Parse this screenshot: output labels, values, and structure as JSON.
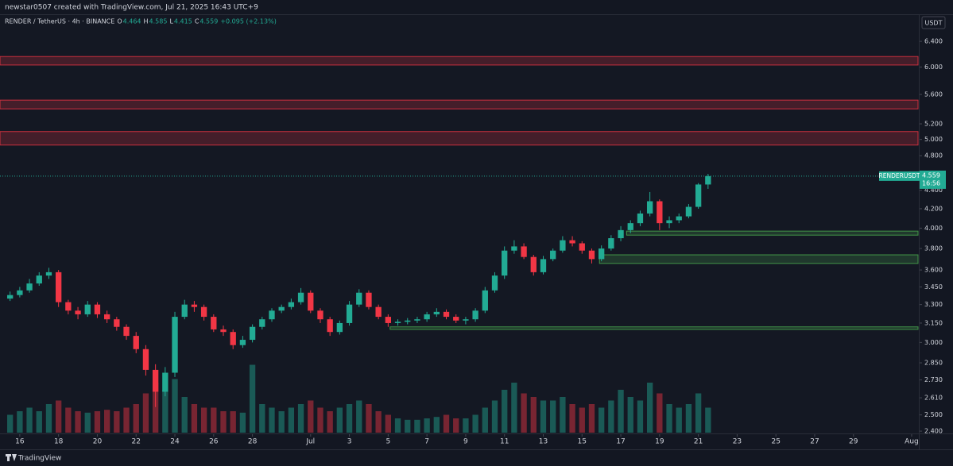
{
  "header": {
    "credit": "newstar0507 created with TradingView.com, Jul 21, 2025 16:43 UTC+9"
  },
  "footer": {
    "brand": "TradingView"
  },
  "chart_data": {
    "type": "candlestick",
    "symbol": "RENDER / TetherUS · 4h · BINANCE",
    "legend_keys": [
      "O",
      "H",
      "L",
      "C"
    ],
    "change": "+0.095 (+2.13%)",
    "currency": "USDT",
    "last_symbol": "RENDERUSDT",
    "countdown": "16:56",
    "up_color": "#22ab94",
    "down_color": "#f23645",
    "log_scale": true,
    "xlim": [
      -1.02,
      46.33
    ],
    "ylim": [
      2.386,
      6.851
    ],
    "volume_lim": [
      0,
      100
    ],
    "xticks": [
      {
        "value": 0,
        "label": "16"
      },
      {
        "value": 2,
        "label": "18"
      },
      {
        "value": 4,
        "label": "20"
      },
      {
        "value": 6,
        "label": "22"
      },
      {
        "value": 8,
        "label": "24"
      },
      {
        "value": 10,
        "label": "26"
      },
      {
        "value": 12,
        "label": "28"
      },
      {
        "value": 15,
        "label": "Jul"
      },
      {
        "value": 17,
        "label": "3"
      },
      {
        "value": 19,
        "label": "5"
      },
      {
        "value": 21,
        "label": "7"
      },
      {
        "value": 23,
        "label": "9"
      },
      {
        "value": 25,
        "label": "11"
      },
      {
        "value": 27,
        "label": "13"
      },
      {
        "value": 29,
        "label": "15"
      },
      {
        "value": 31,
        "label": "17"
      },
      {
        "value": 33,
        "label": "19"
      },
      {
        "value": 35,
        "label": "21"
      },
      {
        "value": 37,
        "label": "23"
      },
      {
        "value": 39,
        "label": "25"
      },
      {
        "value": 41,
        "label": "27"
      },
      {
        "value": 43,
        "label": "29"
      },
      {
        "value": 46,
        "label": "Aug"
      }
    ],
    "yticks": [
      {
        "value": 2.4,
        "label": "2.400"
      },
      {
        "value": 2.5,
        "label": "2.500"
      },
      {
        "value": 2.61,
        "label": "2.610"
      },
      {
        "value": 2.73,
        "label": "2.730"
      },
      {
        "value": 2.85,
        "label": "2.850"
      },
      {
        "value": 3.0,
        "label": "3.000"
      },
      {
        "value": 3.15,
        "label": "3.150"
      },
      {
        "value": 3.3,
        "label": "3.300"
      },
      {
        "value": 3.45,
        "label": "3.450"
      },
      {
        "value": 3.6,
        "label": "3.600"
      },
      {
        "value": 3.8,
        "label": "3.800"
      },
      {
        "value": 4.0,
        "label": "4.000"
      },
      {
        "value": 4.2,
        "label": "4.200"
      },
      {
        "value": 4.4,
        "label": "4.400"
      },
      {
        "value": 4.8,
        "label": "4.800"
      },
      {
        "value": 5.0,
        "label": "5.000"
      },
      {
        "value": 5.2,
        "label": "5.200"
      },
      {
        "value": 5.6,
        "label": "5.600"
      },
      {
        "value": 6.0,
        "label": "6.000"
      },
      {
        "value": 6.4,
        "label": "6.400"
      }
    ],
    "zones": [
      {
        "low": 6.03,
        "high": 6.16,
        "from": -1.02,
        "color": "#f23645"
      },
      {
        "low": 5.4,
        "high": 5.52,
        "from": -1.02,
        "color": "#f23645"
      },
      {
        "low": 4.93,
        "high": 5.1,
        "from": -1.02,
        "color": "#f23645"
      },
      {
        "low": 3.93,
        "high": 3.97,
        "from": 31.3,
        "color": "#4caf50"
      },
      {
        "low": 3.66,
        "high": 3.74,
        "from": 29.9,
        "color": "#4caf50"
      },
      {
        "low": 3.1,
        "high": 3.12,
        "from": 19.1,
        "color": "#4caf50"
      }
    ],
    "x": [
      -0.5,
      0,
      0.5,
      1,
      1.5,
      2,
      2.5,
      3,
      3.5,
      4,
      4.5,
      5,
      5.5,
      6,
      6.5,
      7,
      7.5,
      8,
      8.5,
      9,
      9.5,
      10,
      10.5,
      11,
      11.5,
      12,
      12.5,
      13,
      13.5,
      14,
      14.5,
      15,
      15.5,
      16,
      16.5,
      17,
      17.5,
      18,
      18.5,
      19,
      19.5,
      20,
      20.5,
      21,
      21.5,
      22,
      22.5,
      23,
      23.5,
      24,
      24.5,
      25,
      25.5,
      26,
      26.5,
      27,
      27.5,
      28,
      28.5,
      29,
      29.5,
      30,
      30.5,
      31,
      31.5,
      32,
      32.5,
      33,
      33.5,
      34,
      34.5,
      35,
      35.5
    ],
    "open": [
      3.35,
      3.38,
      3.42,
      3.48,
      3.55,
      3.58,
      3.32,
      3.25,
      3.22,
      3.3,
      3.22,
      3.18,
      3.12,
      3.05,
      2.95,
      2.8,
      2.65,
      2.78,
      3.2,
      3.3,
      3.28,
      3.2,
      3.1,
      3.08,
      2.98,
      3.02,
      3.12,
      3.18,
      3.25,
      3.28,
      3.32,
      3.4,
      3.25,
      3.18,
      3.08,
      3.15,
      3.3,
      3.4,
      3.28,
      3.2,
      3.15,
      3.16,
      3.17,
      3.18,
      3.22,
      3.24,
      3.2,
      3.17,
      3.18,
      3.25,
      3.42,
      3.55,
      3.78,
      3.82,
      3.72,
      3.58,
      3.7,
      3.78,
      3.88,
      3.85,
      3.78,
      3.7,
      3.8,
      3.9,
      3.98,
      4.05,
      4.15,
      4.28,
      4.05,
      4.08,
      4.12,
      4.22,
      4.464
    ],
    "high": [
      3.41,
      3.45,
      3.52,
      3.58,
      3.62,
      3.6,
      3.34,
      3.28,
      3.33,
      3.32,
      3.25,
      3.2,
      3.14,
      3.08,
      2.98,
      2.84,
      2.82,
      3.24,
      3.34,
      3.33,
      3.3,
      3.22,
      3.13,
      3.1,
      3.05,
      3.14,
      3.2,
      3.27,
      3.3,
      3.35,
      3.44,
      3.42,
      3.27,
      3.2,
      3.17,
      3.33,
      3.43,
      3.42,
      3.3,
      3.22,
      3.18,
      3.19,
      3.2,
      3.24,
      3.27,
      3.26,
      3.22,
      3.2,
      3.27,
      3.45,
      3.58,
      3.82,
      3.88,
      3.85,
      3.74,
      3.73,
      3.8,
      3.92,
      3.92,
      3.87,
      3.8,
      3.83,
      3.93,
      4.02,
      4.08,
      4.18,
      4.38,
      4.3,
      4.12,
      4.15,
      4.25,
      4.48,
      4.585
    ],
    "low": [
      3.33,
      3.36,
      3.4,
      3.46,
      3.52,
      3.28,
      3.22,
      3.18,
      3.2,
      3.19,
      3.15,
      3.09,
      3.02,
      2.92,
      2.76,
      2.55,
      2.62,
      2.75,
      3.18,
      3.24,
      3.17,
      3.08,
      3.05,
      2.95,
      2.96,
      3.0,
      3.1,
      3.16,
      3.23,
      3.26,
      3.3,
      3.23,
      3.15,
      3.05,
      3.06,
      3.13,
      3.28,
      3.26,
      3.18,
      3.12,
      3.13,
      3.14,
      3.15,
      3.16,
      3.2,
      3.18,
      3.15,
      3.14,
      3.16,
      3.23,
      3.4,
      3.52,
      3.75,
      3.7,
      3.55,
      3.56,
      3.68,
      3.76,
      3.82,
      3.75,
      3.66,
      3.68,
      3.78,
      3.87,
      3.95,
      4.02,
      4.12,
      3.98,
      4.0,
      4.05,
      4.1,
      4.2,
      4.415
    ],
    "close": [
      3.38,
      3.42,
      3.48,
      3.55,
      3.58,
      3.32,
      3.25,
      3.22,
      3.3,
      3.22,
      3.18,
      3.12,
      3.05,
      2.95,
      2.8,
      2.65,
      2.78,
      3.2,
      3.3,
      3.28,
      3.2,
      3.1,
      3.08,
      2.98,
      3.02,
      3.12,
      3.18,
      3.25,
      3.28,
      3.32,
      3.4,
      3.25,
      3.18,
      3.08,
      3.15,
      3.3,
      3.4,
      3.28,
      3.2,
      3.15,
      3.16,
      3.17,
      3.18,
      3.22,
      3.24,
      3.2,
      3.17,
      3.18,
      3.25,
      3.42,
      3.55,
      3.78,
      3.82,
      3.72,
      3.58,
      3.7,
      3.78,
      3.88,
      3.85,
      3.78,
      3.7,
      3.8,
      3.9,
      3.98,
      4.05,
      4.15,
      4.28,
      4.05,
      4.08,
      4.12,
      4.22,
      4.464,
      4.559
    ],
    "volume": [
      25,
      30,
      35,
      30,
      40,
      45,
      35,
      30,
      28,
      30,
      32,
      30,
      35,
      40,
      55,
      70,
      60,
      75,
      50,
      40,
      35,
      35,
      30,
      30,
      28,
      95,
      40,
      35,
      30,
      35,
      40,
      45,
      35,
      30,
      35,
      40,
      45,
      40,
      30,
      25,
      20,
      18,
      18,
      20,
      22,
      25,
      20,
      20,
      25,
      35,
      45,
      60,
      70,
      55,
      50,
      45,
      45,
      50,
      40,
      35,
      40,
      35,
      45,
      60,
      50,
      45,
      70,
      55,
      40,
      35,
      40,
      55,
      35
    ]
  }
}
